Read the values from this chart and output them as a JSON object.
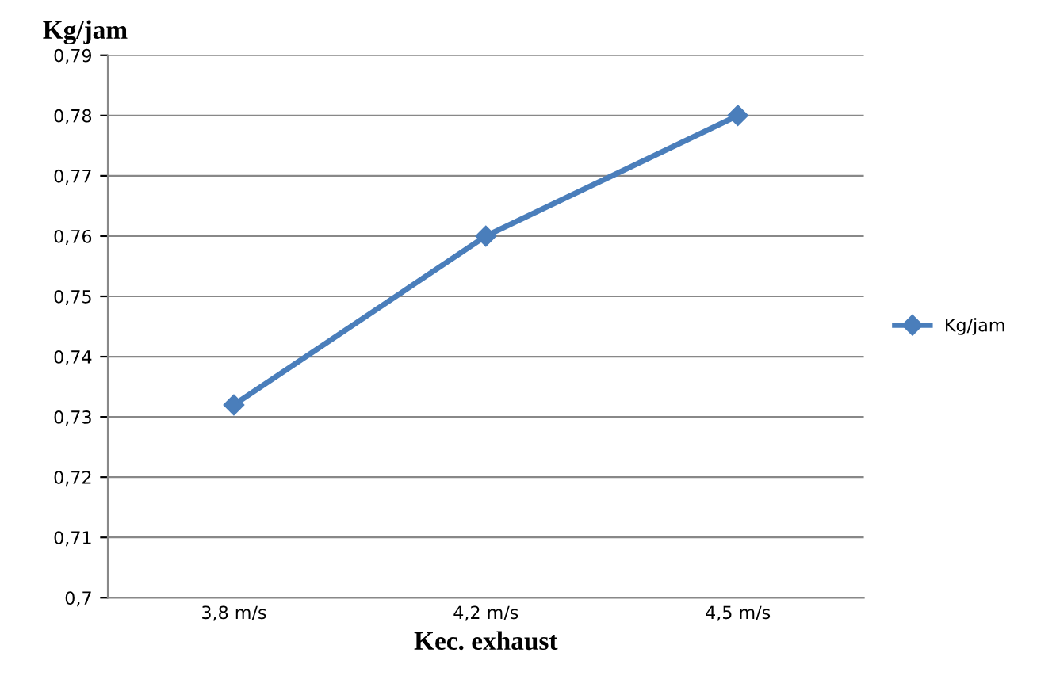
{
  "chart_data": {
    "type": "line",
    "xlabel": "Kec. exhaust",
    "ylabel": "Kg/jam",
    "categories": [
      "3,8 m/s",
      "4,2 m/s",
      "4,5 m/s"
    ],
    "series": [
      {
        "name": "Kg/jam",
        "color": "#4a7ebb",
        "values": [
          0.732,
          0.76,
          0.78
        ]
      }
    ],
    "ylim": [
      0.7,
      0.79
    ],
    "yticks": [
      {
        "value": 0.7,
        "label": "0,7"
      },
      {
        "value": 0.71,
        "label": "0,71"
      },
      {
        "value": 0.72,
        "label": "0,72"
      },
      {
        "value": 0.73,
        "label": "0,73"
      },
      {
        "value": 0.74,
        "label": "0,74"
      },
      {
        "value": 0.75,
        "label": "0,75"
      },
      {
        "value": 0.76,
        "label": "0,76"
      },
      {
        "value": 0.77,
        "label": "0,77"
      },
      {
        "value": 0.78,
        "label": "0,78"
      },
      {
        "value": 0.79,
        "label": "0,79"
      }
    ],
    "grid": "y",
    "legend": "right",
    "marker": "diamond",
    "line_style": "solid"
  }
}
